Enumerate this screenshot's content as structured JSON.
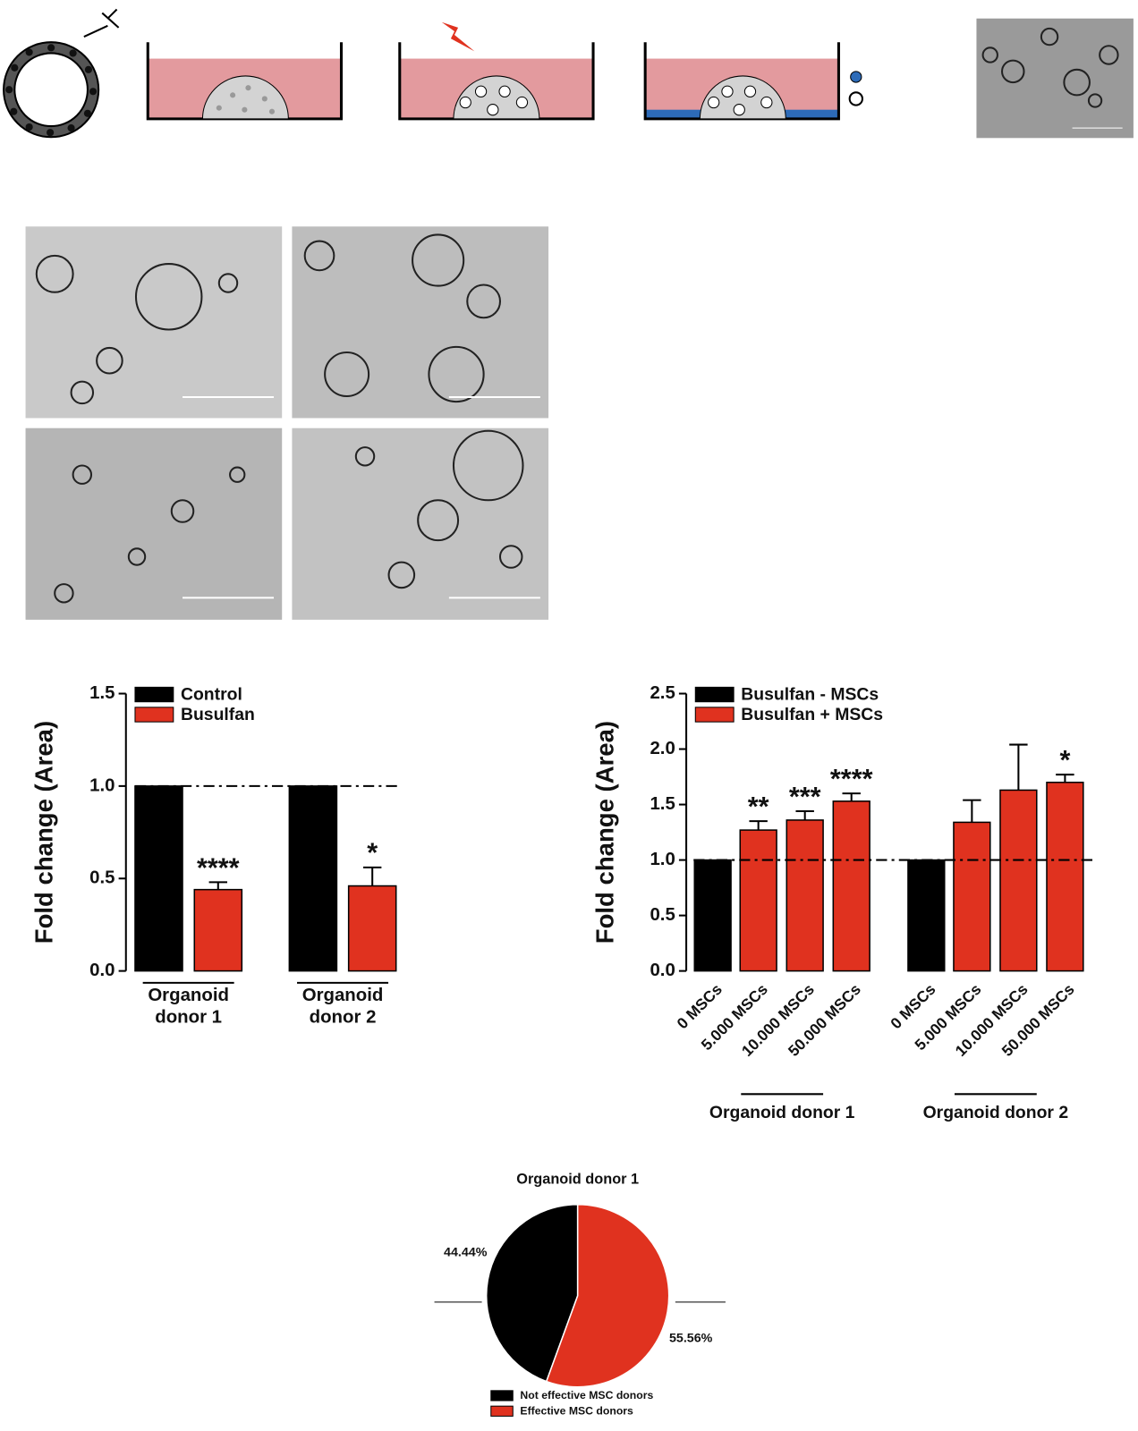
{
  "chart_data": [
    {
      "type": "bar",
      "ylabel": "Fold change (Area)",
      "categories": [
        "Organoid donor 1",
        "Organoid donor 2"
      ],
      "series": [
        {
          "name": "Control",
          "color": "#000000",
          "values": [
            1,
            1
          ],
          "errors": [
            null,
            null
          ],
          "annotations": [
            null,
            null
          ]
        },
        {
          "name": "Busulfan",
          "color": "#e0321f",
          "values": [
            0.44,
            0.46
          ],
          "errors": [
            0.04,
            0.1
          ],
          "annotations": [
            "****",
            "*"
          ]
        }
      ],
      "ylim": [
        0,
        1.5
      ],
      "yticks": [
        {
          "value": 0,
          "label": "0.0"
        },
        {
          "value": 0.5,
          "label": "0.5"
        },
        {
          "value": 1,
          "label": "1.0"
        },
        {
          "value": 1.5,
          "label": "1.5"
        }
      ],
      "reference_line": 1,
      "legend": "upper left"
    },
    {
      "type": "bar",
      "ylabel": "Fold change (Area)",
      "categories": [
        "0 MSCs",
        "5.000 MSCs",
        "10.000 MSCs",
        "50.000 MSCs",
        "0 MSCs",
        "5.000 MSCs",
        "10.000 MSCs",
        "50.000 MSCs"
      ],
      "group_labels": [
        "Organoid donor 1",
        "Organoid donor 2"
      ],
      "series": [
        {
          "name": "Busulfan - MSCs",
          "color": "#000000",
          "values": [
            1,
            null,
            null,
            null,
            1,
            null,
            null,
            null
          ],
          "errors": [
            null,
            null,
            null,
            null,
            null,
            null,
            null,
            null
          ],
          "annotations": [
            null,
            null,
            null,
            null,
            null,
            null,
            null,
            null
          ]
        },
        {
          "name": "Busulfan + MSCs",
          "color": "#e0321f",
          "values": [
            null,
            1.27,
            1.36,
            1.53,
            null,
            1.34,
            1.63,
            1.7
          ],
          "errors": [
            null,
            0.08,
            0.08,
            0.07,
            null,
            0.2,
            0.41,
            0.07
          ],
          "annotations": [
            null,
            "**",
            "***",
            "****",
            null,
            null,
            null,
            "*"
          ]
        }
      ],
      "ylim": [
        0,
        2.5
      ],
      "yticks": [
        {
          "value": 0,
          "label": "0.0"
        },
        {
          "value": 0.5,
          "label": "0.5"
        },
        {
          "value": 1,
          "label": "1.0"
        },
        {
          "value": 1.5,
          "label": "1.5"
        },
        {
          "value": 2,
          "label": "2.0"
        },
        {
          "value": 2.5,
          "label": "2.5"
        }
      ],
      "reference_line": 1,
      "legend": "upper left"
    },
    {
      "type": "pie",
      "title": "Organoid donor 1",
      "categories": [
        "Not effective MSC donors",
        "Effective MSC donors"
      ],
      "values": [
        44.44,
        55.56
      ],
      "value_labels": [
        "44.44%",
        "55.56%"
      ],
      "colors": [
        "#000000",
        "#e0321f"
      ],
      "legend": "bottom"
    }
  ]
}
